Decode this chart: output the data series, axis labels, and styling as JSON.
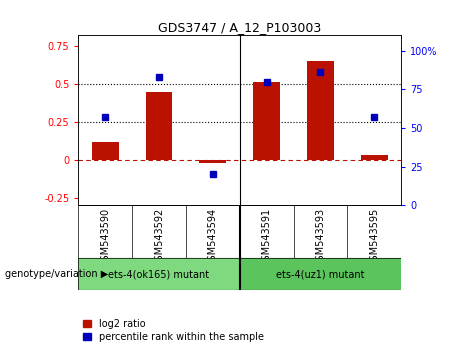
{
  "title": "GDS3747 / A_12_P103003",
  "samples": [
    "GSM543590",
    "GSM543592",
    "GSM543594",
    "GSM543591",
    "GSM543593",
    "GSM543595"
  ],
  "log2_ratio": [
    0.12,
    0.45,
    -0.02,
    0.51,
    0.65,
    0.03
  ],
  "percentile_rank": [
    57,
    83,
    20,
    80,
    86,
    57
  ],
  "groups": [
    {
      "label": "ets-4(ok165) mutant",
      "color": "#7FD97F"
    },
    {
      "label": "ets-4(uz1) mutant",
      "color": "#5CC45C"
    }
  ],
  "bar_color": "#BB1100",
  "dot_color": "#0000BB",
  "ylim_left": [
    -0.3,
    0.82
  ],
  "ylim_right": [
    0,
    110
  ],
  "yticks_left": [
    -0.25,
    0.0,
    0.25,
    0.5,
    0.75
  ],
  "ytick_labels_left": [
    "-0.25",
    "0",
    "0.25",
    "0.5",
    "0.75"
  ],
  "yticks_right": [
    0,
    25,
    50,
    75,
    100
  ],
  "ytick_labels_right": [
    "0",
    "25",
    "50",
    "75",
    "100%"
  ],
  "hlines": [
    0.25,
    0.5
  ],
  "bg_color": "#BEBEBE",
  "legend_label1": "log2 ratio",
  "legend_label2": "percentile rank within the sample",
  "genotype_label": "genotype/variation",
  "title_fontsize": 9,
  "tick_fontsize": 7,
  "label_fontsize": 7
}
